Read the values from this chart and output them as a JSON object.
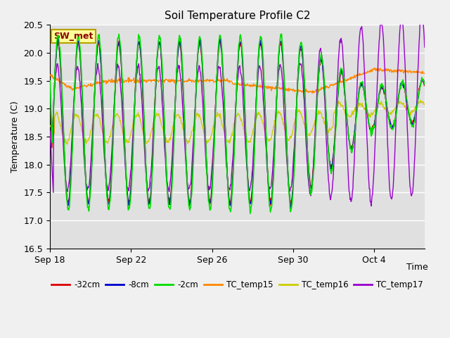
{
  "title": "Soil Temperature Profile C2",
  "xlabel": "Time",
  "ylabel": "Temperature (C)",
  "ylim": [
    16.5,
    20.5
  ],
  "fig_bg": "#f0f0f0",
  "plot_bg": "#e0e0e0",
  "annotation_text": "SW_met",
  "annotation_color": "#8B0000",
  "annotation_bg": "#ffff99",
  "annotation_border": "#b8a000",
  "series_colors": {
    "-32cm": "#dd0000",
    "-8cm": "#0000cc",
    "-2cm": "#00dd00",
    "TC_temp15": "#ff8800",
    "TC_temp16": "#cccc00",
    "TC_temp17": "#9900cc"
  },
  "grid_color": "#ffffff",
  "line_width": 1.0,
  "total_days": 18.5,
  "n_points": 800,
  "period_days": 1.0,
  "xlim_start_day": 0,
  "xlim_end_day": 18.5,
  "x_tick_days": [
    0,
    4,
    8,
    12,
    16
  ],
  "x_tick_labels": [
    "Sep 18",
    "Sep 22",
    "Sep 26",
    "Sep 30",
    "Oct 4"
  ]
}
